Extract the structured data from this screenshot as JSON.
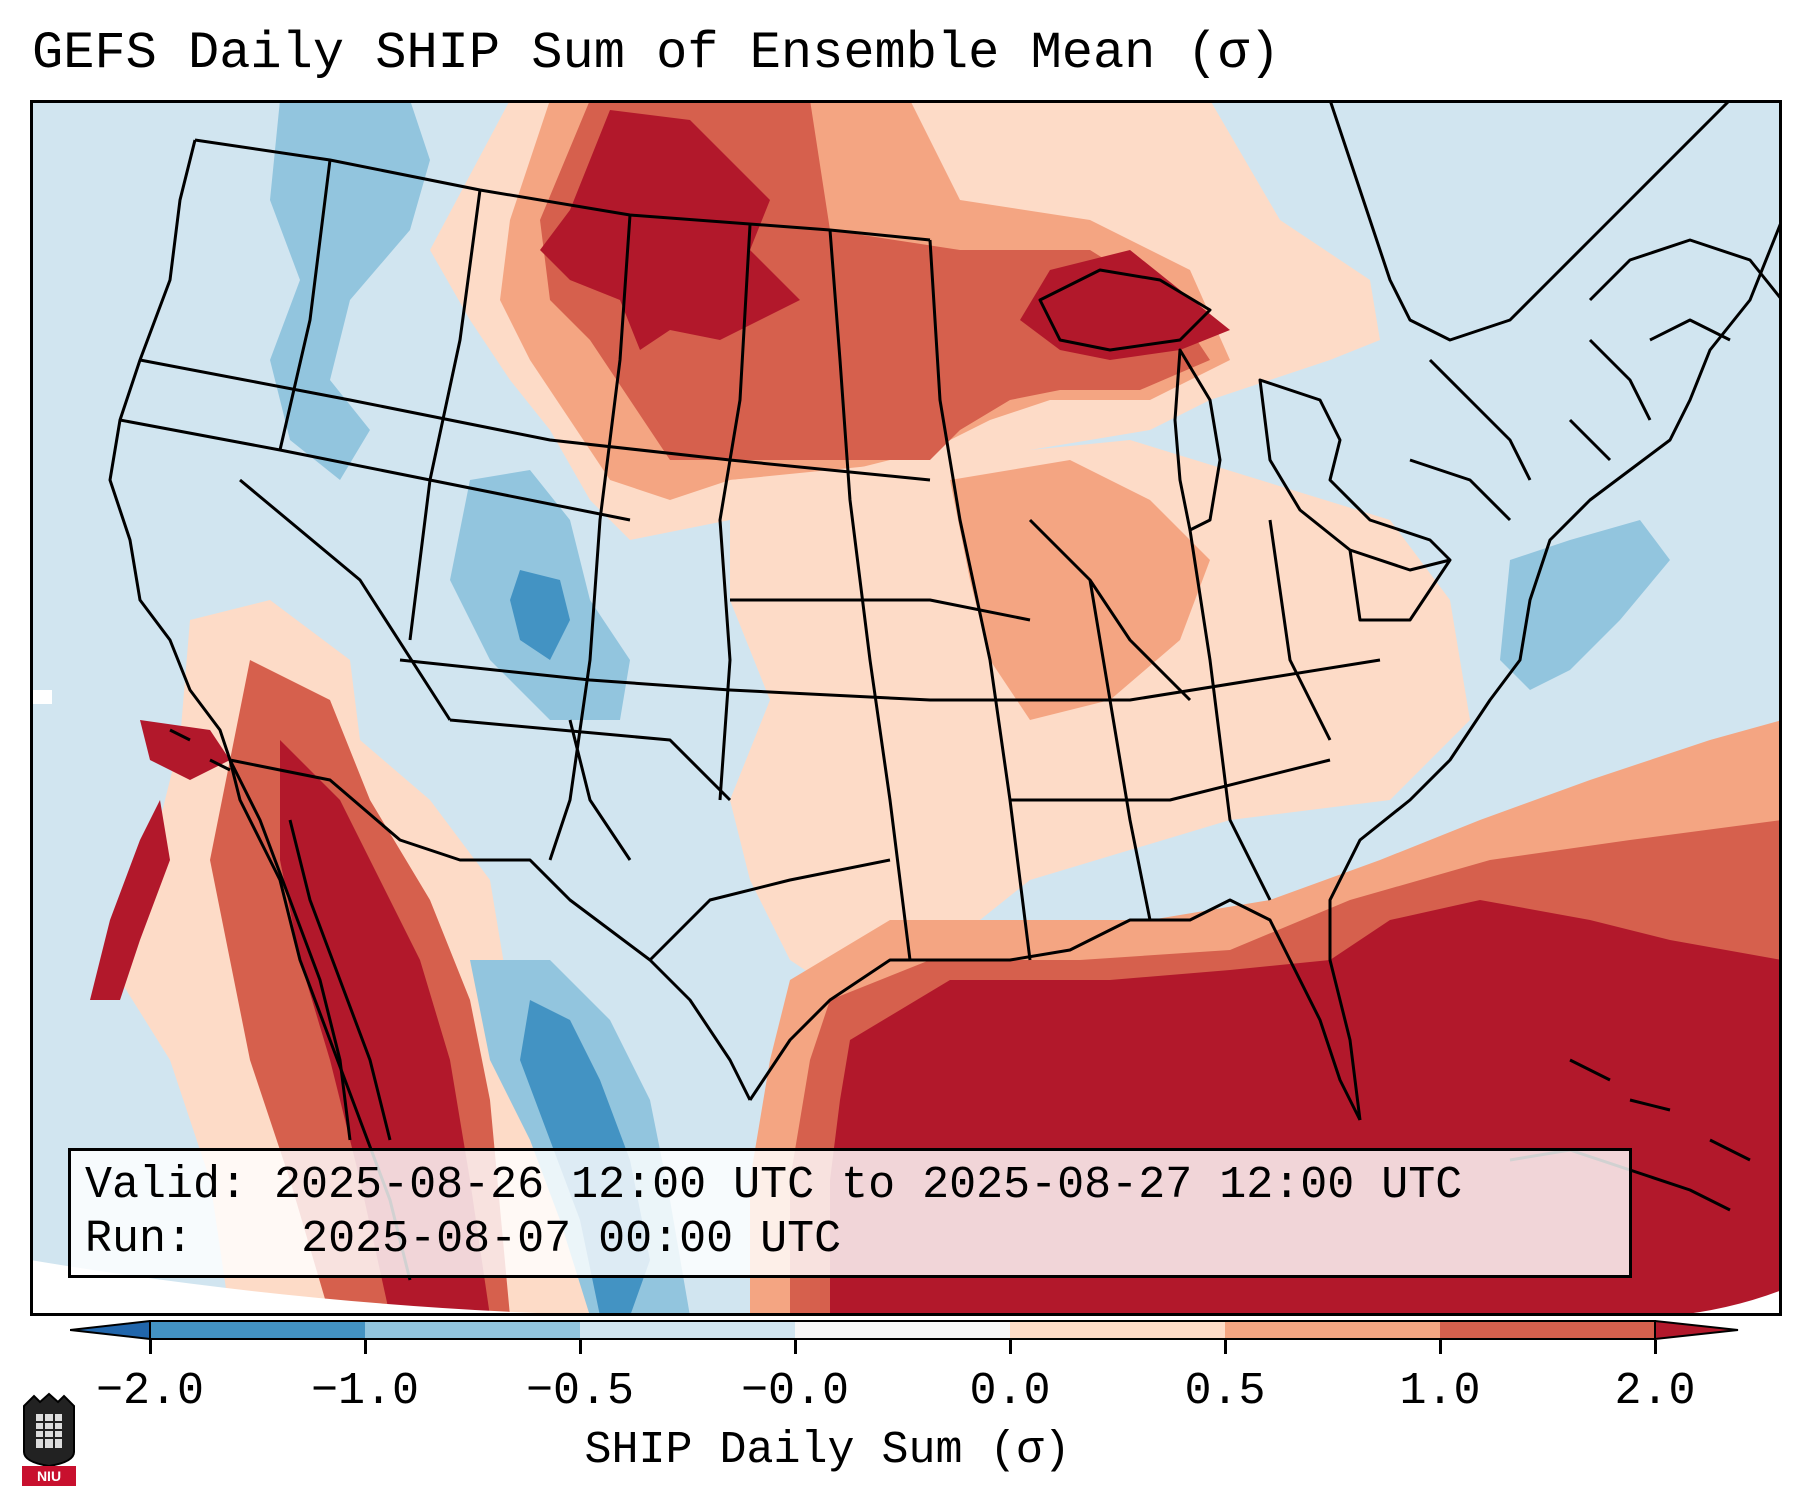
{
  "title": "GEFS Daily SHIP Sum of Ensemble Mean (σ)",
  "info": {
    "valid_label": "Valid:",
    "valid_value": "2025-08-26 12:00 UTC to 2025-08-27 12:00 UTC",
    "run_label": "Run:",
    "run_value": "2025-08-07 00:00 UTC"
  },
  "colorbar": {
    "label": "SHIP Daily Sum (σ)",
    "ticks": [
      "−2.0",
      "−1.0",
      "−0.5",
      "−0.0",
      "0.0",
      "0.5",
      "1.0",
      "2.0"
    ],
    "colors": [
      "#3a87c0",
      "#8ec2de",
      "#d0e4f0",
      "#f7f7f7",
      "#fbd8c6",
      "#f0a483",
      "#d6604d",
      "#b2182b"
    ]
  },
  "legend_items": [
    {
      "range": "< −2.0",
      "color": "#2166ac"
    },
    {
      "range": "−2.0 to −1.0",
      "color": "#4393c3"
    },
    {
      "range": "−1.0 to −0.5",
      "color": "#92c5de"
    },
    {
      "range": "−0.5 to −0.0",
      "color": "#d1e5f0"
    },
    {
      "range": "0.0 to 0.5",
      "color": "#fddbc7"
    },
    {
      "range": "0.5 to 1.0",
      "color": "#f4a582"
    },
    {
      "range": "1.0 to 2.0",
      "color": "#d6604d"
    },
    {
      "range": "> 2.0",
      "color": "#b2182b"
    }
  ],
  "logo": {
    "text": "NIU"
  }
}
